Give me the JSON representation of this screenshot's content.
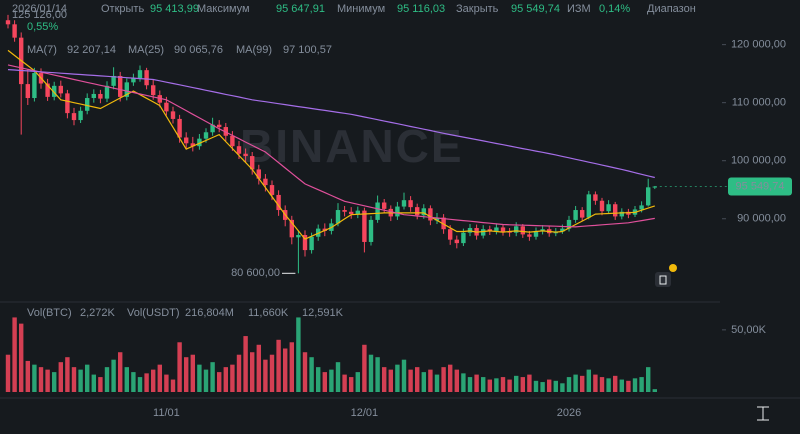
{
  "header": {
    "date": "2026/01/14",
    "fields": [
      {
        "label": "Открыть",
        "value": "95 413,99"
      },
      {
        "label": "Максимум",
        "value": "95 647,91"
      },
      {
        "label": "Минимум",
        "value": "95 116,03"
      },
      {
        "label": "Закрыть",
        "value": "95 549,74"
      },
      {
        "label": "ИЗМ",
        "value": "0,14%"
      },
      {
        "label": "Диапазон",
        "value": "0,55%"
      }
    ],
    "watermark": "BINANCE"
  },
  "chart_data": [
    {
      "type": "candlestick",
      "categories": [
        null,
        null,
        null,
        null,
        null,
        null,
        null,
        null,
        null,
        null,
        null,
        null,
        null,
        null,
        null,
        null,
        null,
        null,
        null,
        null,
        null,
        null,
        null,
        null,
        "11/01",
        null,
        null,
        null,
        null,
        null,
        null,
        null,
        null,
        null,
        null,
        null,
        null,
        null,
        null,
        null,
        null,
        null,
        null,
        null,
        null,
        null,
        null,
        null,
        null,
        null,
        null,
        null,
        null,
        null,
        "12/01",
        null,
        null,
        null,
        null,
        null,
        null,
        null,
        null,
        null,
        null,
        null,
        null,
        null,
        null,
        null,
        null,
        null,
        null,
        null,
        null,
        null,
        null,
        null,
        null,
        null,
        null,
        null,
        null,
        null,
        null,
        "2026",
        null,
        null,
        null,
        null,
        null,
        null,
        null,
        null,
        null,
        null,
        null,
        null,
        null
      ],
      "open": [
        124200,
        123500,
        121200,
        113200,
        110800,
        115100,
        113300,
        111000,
        112900,
        111600,
        108200,
        107000,
        108600,
        110800,
        111500,
        110700,
        112900,
        114600,
        111000,
        113500,
        114200,
        115600,
        113000,
        111300,
        110000,
        108500,
        107200,
        104000,
        103000,
        102500,
        103800,
        104900,
        106200,
        105800,
        104300,
        102500,
        101200,
        100800,
        98500,
        96900,
        95800,
        94100,
        91500,
        89800,
        86800,
        87200,
        84600,
        86900,
        88300,
        87900,
        89200,
        91500,
        91200,
        90800,
        91400,
        86000,
        89800,
        92800,
        91700,
        90400,
        92100,
        93200,
        92000,
        90600,
        91800,
        89700,
        90200,
        88200,
        86400,
        85800,
        87600,
        88400,
        87100,
        88200,
        87900,
        88500,
        87800,
        87600,
        88700,
        87300,
        86900,
        87900,
        88200,
        87500,
        87800,
        88300,
        89800,
        91500,
        90200,
        94200,
        93100,
        91300,
        92500,
        90400,
        91200,
        90700,
        91600,
        92300,
        95413.99
      ],
      "high": [
        125126,
        124200,
        122100,
        115800,
        116000,
        115900,
        114100,
        113600,
        113800,
        112200,
        109100,
        109300,
        111600,
        112300,
        112200,
        113700,
        116100,
        115300,
        114200,
        115000,
        116400,
        116000,
        113900,
        112100,
        111000,
        109300,
        107900,
        104900,
        104100,
        104600,
        105600,
        107400,
        107000,
        106500,
        105100,
        103400,
        102100,
        101500,
        99300,
        97700,
        96600,
        94900,
        92300,
        90500,
        87900,
        88000,
        87600,
        89000,
        89200,
        90000,
        92700,
        92200,
        92000,
        92100,
        91900,
        90500,
        94000,
        93400,
        92300,
        92900,
        94500,
        93900,
        92600,
        92500,
        92300,
        91000,
        90800,
        88900,
        87100,
        88300,
        89100,
        89000,
        88900,
        88800,
        89200,
        89000,
        88400,
        89400,
        89100,
        87900,
        88500,
        88900,
        88700,
        88400,
        89000,
        90500,
        92200,
        92000,
        94800,
        94700,
        93600,
        93200,
        92900,
        91800,
        91700,
        92200,
        93000,
        96900,
        95647.91
      ],
      "low": [
        122800,
        120500,
        104500,
        109600,
        110200,
        112400,
        110300,
        110400,
        110900,
        107300,
        106100,
        106500,
        108000,
        110000,
        109900,
        110100,
        112300,
        110200,
        110400,
        112900,
        113600,
        112300,
        110500,
        109200,
        107800,
        106400,
        103100,
        102000,
        101600,
        101900,
        103100,
        104300,
        104900,
        103400,
        101700,
        100300,
        99700,
        97600,
        95900,
        94700,
        93200,
        90500,
        88700,
        85600,
        80600,
        83500,
        84000,
        86200,
        87000,
        87300,
        88700,
        90400,
        90000,
        90100,
        84200,
        85400,
        89300,
        90900,
        89600,
        89800,
        91600,
        91200,
        89900,
        90000,
        88900,
        89100,
        87400,
        85500,
        84900,
        85300,
        87000,
        86400,
        86600,
        87200,
        87300,
        87100,
        86900,
        87000,
        86700,
        86200,
        86400,
        87300,
        86900,
        87000,
        87400,
        87800,
        89300,
        89600,
        89900,
        92400,
        90600,
        90900,
        89800,
        89900,
        90100,
        90300,
        91100,
        92100,
        95116.03
      ],
      "close": [
        123500,
        121200,
        113200,
        110800,
        115100,
        113300,
        111000,
        112900,
        111600,
        108200,
        107000,
        108600,
        110800,
        111500,
        110700,
        112900,
        114600,
        111000,
        113500,
        114200,
        115600,
        113000,
        111300,
        110000,
        108500,
        107200,
        104000,
        103000,
        102500,
        103800,
        104900,
        106200,
        105800,
        104300,
        102500,
        101200,
        100800,
        98500,
        96900,
        95800,
        94100,
        91500,
        89800,
        86800,
        87200,
        84600,
        86900,
        88300,
        87900,
        89200,
        91500,
        91200,
        90800,
        91400,
        86000,
        89800,
        92800,
        91700,
        90400,
        92100,
        93200,
        92000,
        90600,
        91800,
        89700,
        90200,
        88200,
        86400,
        85800,
        87600,
        88400,
        87100,
        88200,
        87900,
        88500,
        87800,
        87600,
        88700,
        87300,
        86900,
        87900,
        88200,
        87500,
        87800,
        88300,
        89800,
        91500,
        90200,
        94200,
        93100,
        91300,
        92500,
        90400,
        91200,
        90700,
        91600,
        92300,
        95413.99,
        95549.74
      ],
      "up_color": "#2ebd85",
      "down_color": "#f6465d",
      "ylim": [
        76000,
        127000
      ],
      "yticks": [
        {
          "value": 90000,
          "label": "90 000,00"
        },
        {
          "value": 100000,
          "label": "100 000,00"
        },
        {
          "value": 110000,
          "label": "110 000,00"
        },
        {
          "value": 120000,
          "label": "120 000,00"
        }
      ],
      "high_label": "125 126,00",
      "low_label": "80 600,00",
      "last_label": "95 549,74",
      "series": [
        {
          "name": "MA(7)",
          "value_label": "92 207,14",
          "color": "#f0b90b",
          "values": [
            119000,
            118130,
            117250,
            116380,
            115500,
            114250,
            113000,
            111750,
            110500,
            110250,
            110000,
            109750,
            109500,
            109250,
            109000,
            109600,
            110200,
            110800,
            111400,
            112000,
            111380,
            110750,
            110130,
            109500,
            107630,
            105750,
            103880,
            102000,
            102500,
            103000,
            103500,
            104000,
            104500,
            103300,
            102100,
            100900,
            99700,
            98500,
            96940,
            95380,
            93820,
            92260,
            90700,
            89300,
            87900,
            86500,
            87000,
            87500,
            88000,
            88500,
            89230,
            89970,
            90700,
            90760,
            90820,
            90880,
            90940,
            91000,
            91000,
            91000,
            91000,
            91000,
            91000,
            91000,
            90360,
            89720,
            89080,
            88440,
            87800,
            87800,
            87900,
            87700,
            87800,
            87900,
            87800,
            87700,
            87800,
            87900,
            87800,
            87700,
            87800,
            87900,
            87800,
            87700,
            87800,
            88400,
            89000,
            89600,
            90200,
            90800,
            90850,
            90900,
            90950,
            91000,
            91050,
            91100,
            91470,
            91840,
            92207.14
          ]
        },
        {
          "name": "MA(25)",
          "value_label": "90 065,76",
          "color": "#e0509b",
          "values": [
            116500,
            116250,
            116000,
            115750,
            115500,
            115250,
            115000,
            114750,
            114500,
            114250,
            114000,
            113750,
            113500,
            113250,
            113000,
            112750,
            112500,
            112250,
            112000,
            111750,
            111500,
            111250,
            111000,
            110750,
            110500,
            109880,
            109250,
            108630,
            108000,
            107380,
            106750,
            106130,
            105500,
            104930,
            104360,
            103790,
            103210,
            102640,
            102070,
            101500,
            100580,
            99670,
            98750,
            97830,
            96920,
            96000,
            95500,
            95000,
            94500,
            94000,
            93500,
            93000,
            92740,
            92490,
            92230,
            91980,
            91720,
            91470,
            91210,
            90960,
            90700,
            90590,
            90470,
            90360,
            90250,
            90130,
            90020,
            89910,
            89790,
            89680,
            89570,
            89450,
            89340,
            89230,
            89110,
            89000,
            88960,
            88930,
            88890,
            88850,
            88820,
            88780,
            88750,
            88710,
            88670,
            88640,
            88600,
            88690,
            88780,
            88860,
            88950,
            89040,
            89130,
            89210,
            89300,
            89490,
            89680,
            89870,
            90065.76
          ]
        },
        {
          "name": "MA(99)",
          "value_label": "97 100,57",
          "color": "#a56ee8",
          "values": [
            115700,
            115620,
            115550,
            115470,
            115390,
            115310,
            115240,
            115160,
            115080,
            115000,
            114930,
            114850,
            114770,
            114700,
            114620,
            114540,
            114460,
            114390,
            114310,
            114230,
            114150,
            114080,
            114000,
            113770,
            113530,
            113300,
            113070,
            112830,
            112600,
            112370,
            112130,
            111900,
            111670,
            111430,
            111200,
            110970,
            110730,
            110500,
            110330,
            110170,
            110000,
            109830,
            109670,
            109500,
            109330,
            109170,
            109000,
            108830,
            108670,
            108500,
            108330,
            108170,
            108000,
            107770,
            107530,
            107300,
            107070,
            106830,
            106600,
            106370,
            106130,
            105900,
            105670,
            105430,
            105200,
            104970,
            104730,
            104500,
            104280,
            104060,
            103840,
            103630,
            103410,
            103190,
            102970,
            102750,
            102530,
            102310,
            102090,
            101880,
            101660,
            101440,
            101220,
            101000,
            100750,
            100500,
            100250,
            100000,
            99750,
            99500,
            99250,
            99000,
            98750,
            98500,
            98220,
            97940,
            97660,
            97380,
            97100.57
          ]
        }
      ]
    },
    {
      "type": "bar",
      "values": [
        30000,
        60000,
        55000,
        25000,
        22000,
        20000,
        18000,
        16000,
        24000,
        28000,
        20000,
        18000,
        22000,
        14000,
        12000,
        20000,
        26000,
        32000,
        20000,
        16000,
        12000,
        15000,
        18000,
        22000,
        14000,
        10000,
        40000,
        28000,
        30000,
        22000,
        18000,
        24000,
        16000,
        20000,
        22000,
        30000,
        45000,
        32000,
        38000,
        26000,
        30000,
        42000,
        35000,
        40000,
        60000,
        32000,
        28000,
        20000,
        16000,
        18000,
        24000,
        14000,
        12000,
        16000,
        38000,
        30000,
        28000,
        20000,
        18000,
        22000,
        26000,
        18000,
        20000,
        16000,
        18000,
        14000,
        20000,
        22000,
        18000,
        15000,
        12000,
        14000,
        12000,
        10000,
        11000,
        12000,
        10000,
        13000,
        12000,
        14000,
        9000,
        8000,
        10000,
        9000,
        7000,
        12000,
        14000,
        13000,
        18000,
        14000,
        12000,
        11000,
        13000,
        10000,
        9000,
        11000,
        12000,
        20000,
        2272
      ],
      "ylim": [
        0,
        70000
      ],
      "yticks": [
        {
          "value": 50000,
          "label": "50,00K"
        }
      ],
      "legend": [
        {
          "name": "Vol(BTC)",
          "value_label": "2,272K"
        },
        {
          "name": "Vol(USDT)",
          "value_label": "216,804M"
        },
        {
          "value_label": "11,660K",
          "color": "#4fc3f7"
        },
        {
          "value_label": "12,591K",
          "color": "#f6465d"
        }
      ]
    }
  ]
}
